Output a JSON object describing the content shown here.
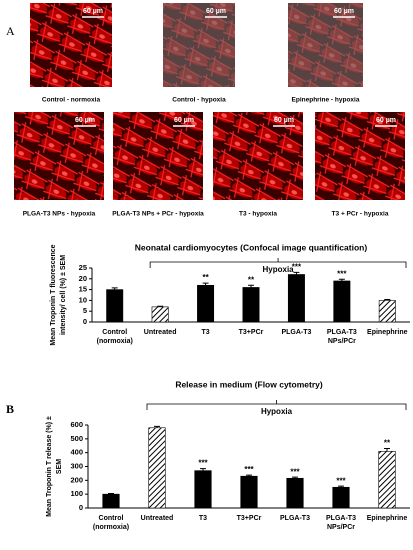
{
  "panel_a": {
    "label": "A",
    "images": [
      {
        "caption": "Control - normoxia",
        "scale": "60 µm"
      },
      {
        "caption": "Control - hypoxia",
        "scale": "60 µm"
      },
      {
        "caption": "Epinephrine - hypoxia",
        "scale": "60 µm"
      },
      {
        "caption": "PLGA-T3 NPs - hypoxia",
        "scale": "60 µm"
      },
      {
        "caption": "PLGA-T3 NPs + PCr - hypoxia",
        "scale": "60 µm"
      },
      {
        "caption": "T3 - hypoxia",
        "scale": "60 µm"
      },
      {
        "caption": "T3 + PCr - hypoxia",
        "scale": "60 µm"
      }
    ]
  },
  "chart_data": [
    {
      "type": "bar",
      "title": "Neonatal cardiomyocytes (Confocal image quantification)",
      "bracket_label": "Hypoxia",
      "ylabel": [
        "Mean Troponin T fluorescence",
        "intensity/ cell (%) ± SEM"
      ],
      "categories": [
        "Control (normoxia)",
        "Untreated",
        "T3",
        "T3+PCr",
        "PLGA-T3",
        "PLGA-T3 NPs/PCr",
        "Epinephrine"
      ],
      "values": [
        15,
        7,
        17,
        16,
        22,
        19,
        10
      ],
      "errors": [
        0.8,
        0.3,
        1,
        1,
        1,
        0.8,
        0.4
      ],
      "annotations": [
        null,
        null,
        "**",
        "**",
        "***",
        "***",
        null
      ],
      "hatch": [
        false,
        true,
        false,
        false,
        false,
        false,
        true
      ],
      "color": "#000000",
      "ylim": [
        0,
        25
      ],
      "yticks": [
        0,
        5,
        10,
        15,
        20,
        25
      ]
    },
    {
      "type": "bar",
      "panel_label": "B",
      "title": "Release in medium (Flow cytometry)",
      "bracket_label": "Hypoxia",
      "ylabel": [
        "Mean Troponin T release (%) ±",
        "SEM"
      ],
      "categories": [
        "Control (normoxia)",
        "Untreated",
        "T3",
        "T3+PCr",
        "PLGA-T3",
        "PLGA-T3 NPs/PCr",
        "Epinephrine"
      ],
      "values": [
        100,
        580,
        270,
        230,
        215,
        150,
        410
      ],
      "errors": [
        5,
        10,
        15,
        8,
        8,
        8,
        20
      ],
      "annotations": [
        null,
        null,
        "***",
        "***",
        "***",
        "***",
        "**"
      ],
      "hatch": [
        false,
        true,
        false,
        false,
        false,
        false,
        true
      ],
      "color": "#000000",
      "ylim": [
        0,
        600
      ],
      "yticks": [
        0,
        100,
        200,
        300,
        400,
        500,
        600
      ]
    }
  ]
}
